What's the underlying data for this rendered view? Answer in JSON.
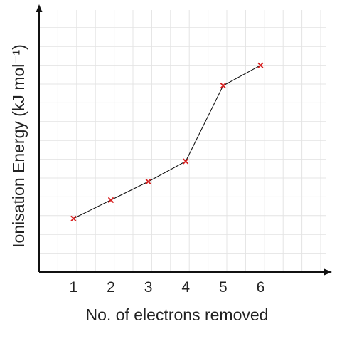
{
  "chart_data": {
    "type": "line",
    "x": [
      1,
      2,
      3,
      4,
      5,
      6
    ],
    "categories": [
      "1",
      "2",
      "3",
      "4",
      "5",
      "6"
    ],
    "values": [
      2.9,
      3.9,
      4.9,
      6.0,
      10.1,
      11.2
    ],
    "xlabel": "No. of electrons removed",
    "ylabel": "Ionisation Energy (kJ mol⁻¹)",
    "xlim": [
      0.08,
      7.76
    ],
    "ylim": [
      0,
      14.2
    ],
    "grid": true,
    "marker": "x",
    "colors": {
      "line": "#111111",
      "marker": "#d62020",
      "grid": "#e4e4e4",
      "axis": "#111111"
    }
  }
}
